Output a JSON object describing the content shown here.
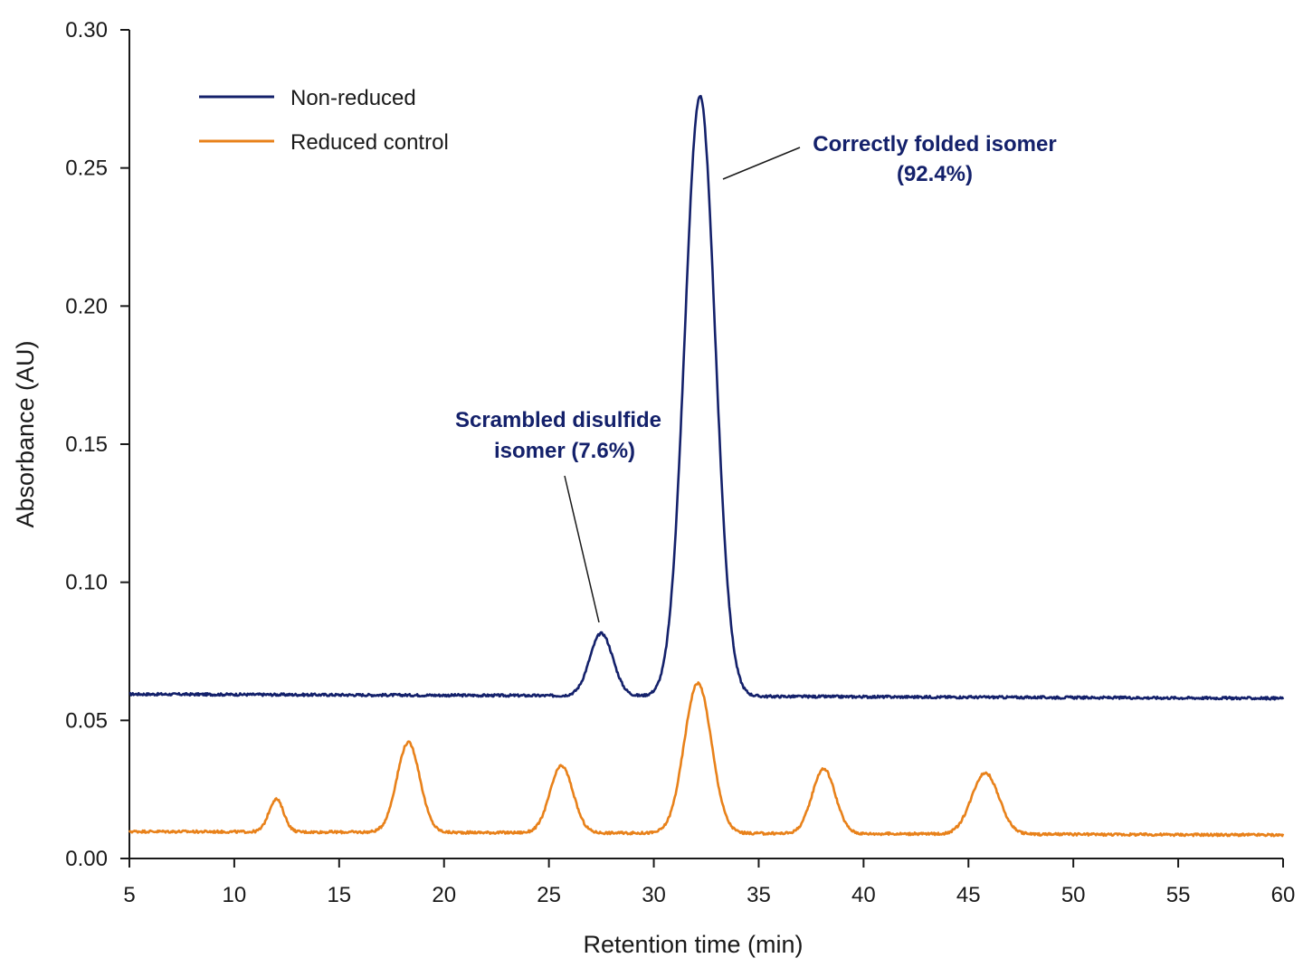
{
  "chart_data": {
    "type": "line",
    "xlabel": "Retention time (min)",
    "ylabel": "Absorbance (AU)",
    "xlim": [
      5,
      60
    ],
    "ylim": [
      0,
      0.3
    ],
    "x_ticks": [
      "5",
      "10",
      "15",
      "20",
      "25",
      "30",
      "35",
      "40",
      "45",
      "50",
      "55",
      "60"
    ],
    "y_ticks": [
      "0.00",
      "0.05",
      "0.10",
      "0.15",
      "0.20",
      "0.25",
      "0.30"
    ],
    "grid": false,
    "legend_position": "top-left",
    "series": [
      {
        "name": "Non-reduced",
        "color": "#14216b",
        "baseline": [
          [
            5,
            0.0595
          ],
          [
            60,
            0.058
          ]
        ],
        "peaks": [
          {
            "x": 27.5,
            "height": 0.0815,
            "width": 0.55
          },
          {
            "x": 32.2,
            "height": 0.276,
            "width": 0.72
          }
        ]
      },
      {
        "name": "Reduced control",
        "color": "#e8811a",
        "baseline": [
          [
            5,
            0.0098
          ],
          [
            60,
            0.0085
          ]
        ],
        "peaks": [
          {
            "x": 12.0,
            "height": 0.0215,
            "width": 0.35
          },
          {
            "x": 18.3,
            "height": 0.042,
            "width": 0.55
          },
          {
            "x": 25.6,
            "height": 0.0335,
            "width": 0.55
          },
          {
            "x": 32.1,
            "height": 0.0635,
            "width": 0.65
          },
          {
            "x": 38.1,
            "height": 0.0325,
            "width": 0.55
          },
          {
            "x": 45.8,
            "height": 0.031,
            "width": 0.65
          }
        ]
      }
    ],
    "annotations": [
      {
        "id": "scrambled",
        "lines": [
          "Scrambled disulfide",
          "isomer (7.6%)"
        ],
        "color": "#14216b",
        "points_to": {
          "x": 27.5,
          "y": 0.085
        }
      },
      {
        "id": "correct",
        "lines": [
          "Correctly folded isomer",
          "(92.4%)"
        ],
        "color": "#14216b",
        "points_to": {
          "x": 32.8,
          "y": 0.246
        }
      }
    ]
  }
}
